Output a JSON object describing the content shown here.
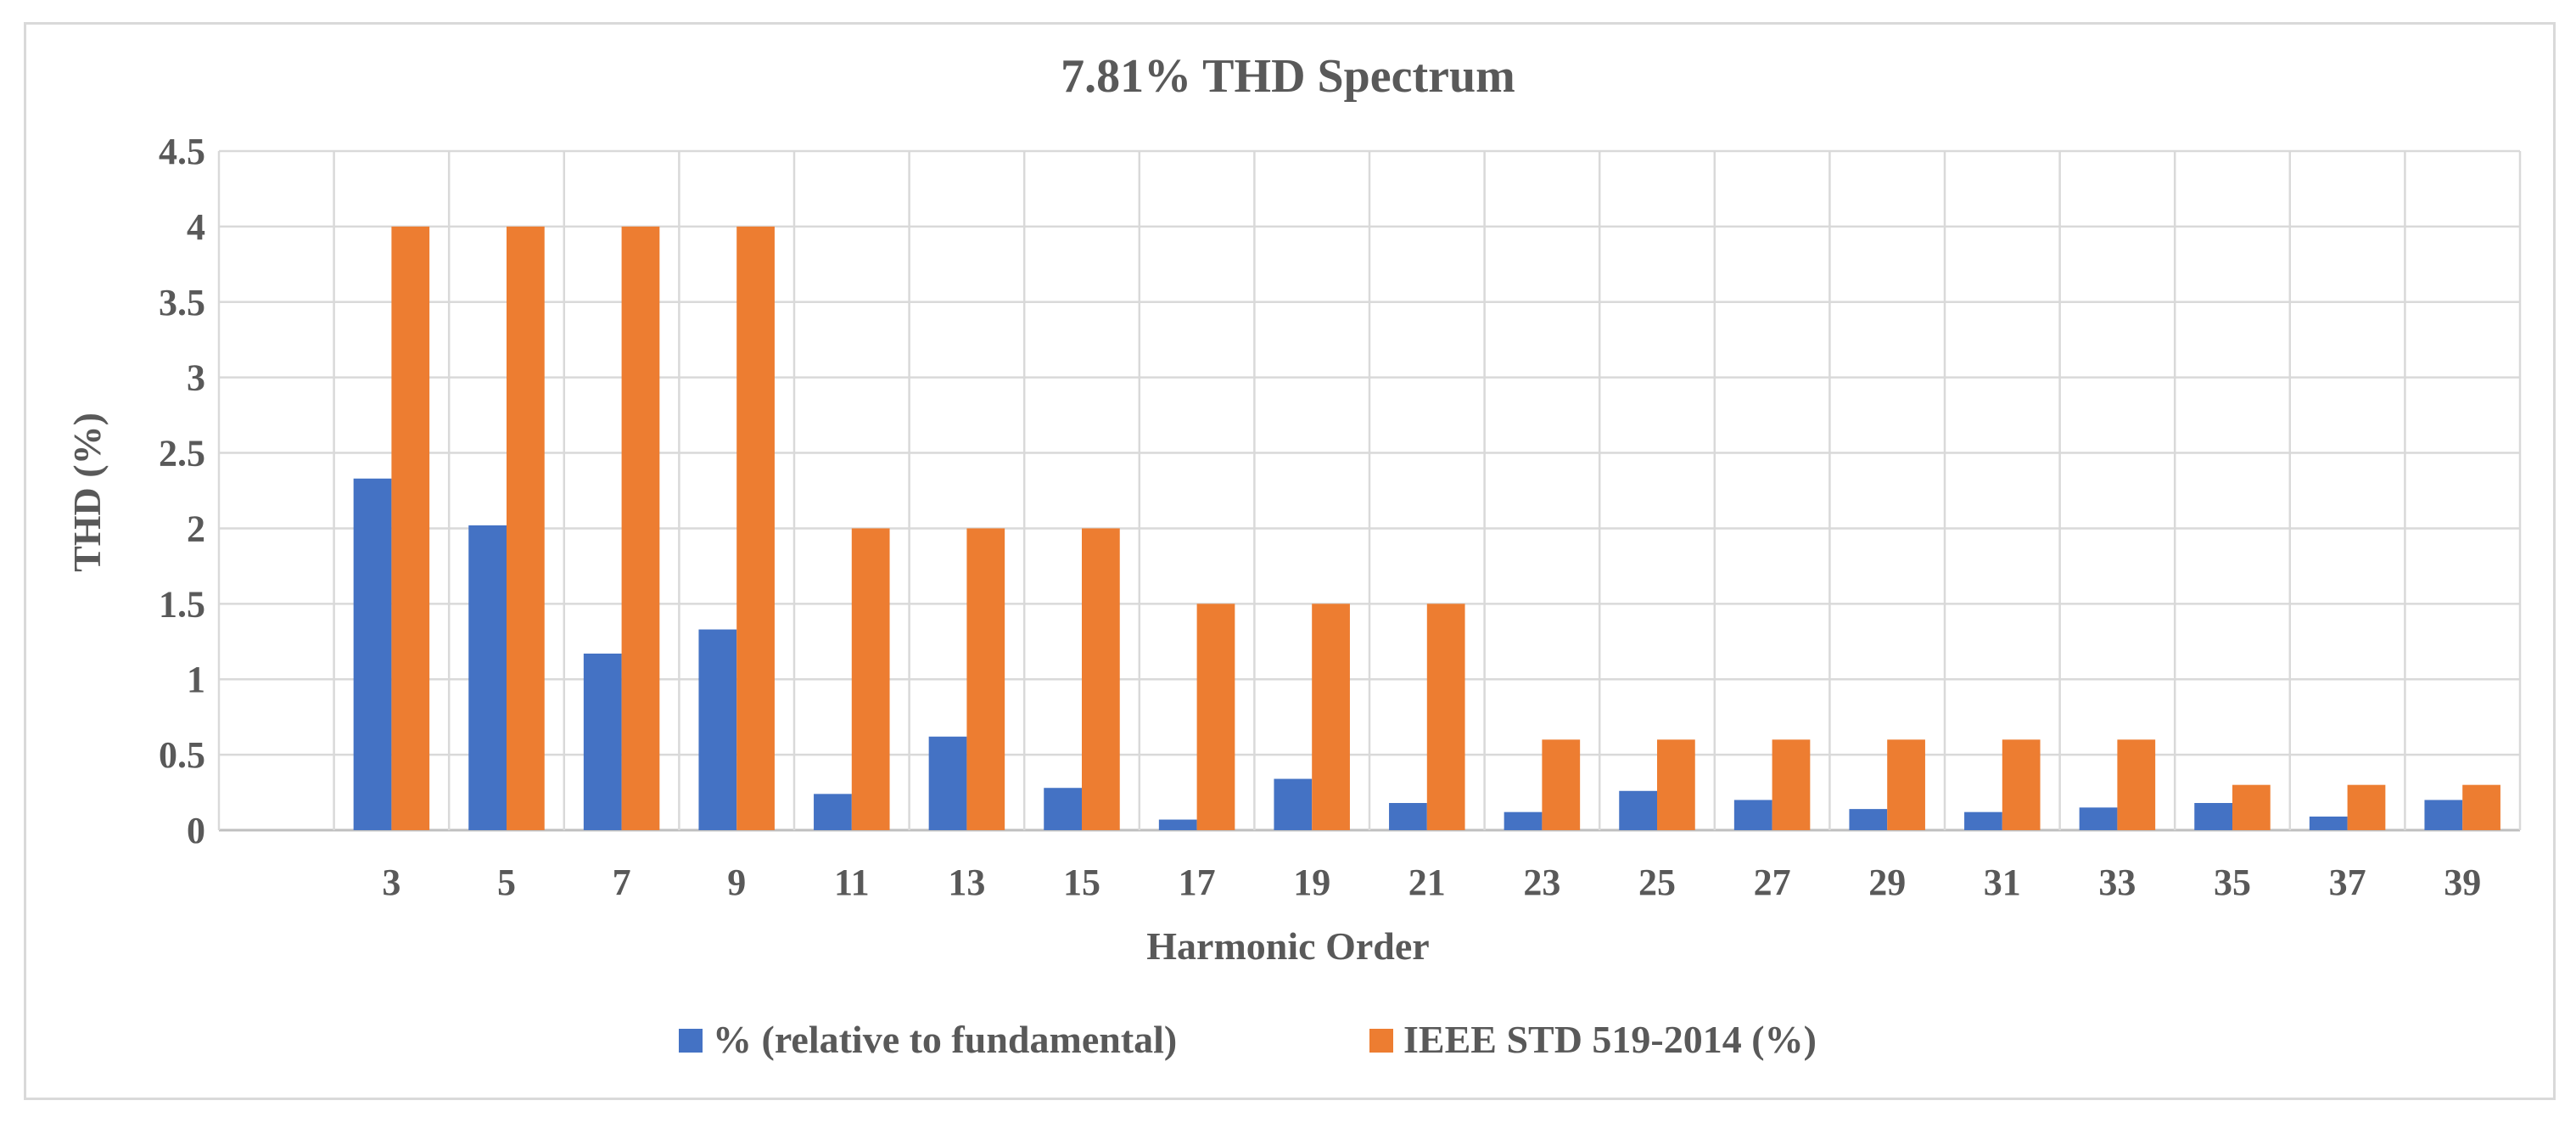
{
  "chart_data": {
    "type": "bar",
    "title": "7.81% THD Spectrum",
    "xlabel": "Harmonic Order",
    "ylabel": "THD (%)",
    "ylim": [
      0,
      4.5
    ],
    "yticks": [
      "0",
      "0.5",
      "1",
      "1.5",
      "2",
      "2.5",
      "3",
      "3.5",
      "4",
      "4.5"
    ],
    "categories": [
      "3",
      "5",
      "7",
      "9",
      "11",
      "13",
      "15",
      "17",
      "19",
      "21",
      "23",
      "25",
      "27",
      "29",
      "31",
      "33",
      "35",
      "37",
      "39"
    ],
    "series": [
      {
        "name": "% (relative to fundamental)",
        "color": "#4472C4",
        "values": [
          2.33,
          2.02,
          1.17,
          1.33,
          0.24,
          0.62,
          0.28,
          0.07,
          0.34,
          0.18,
          0.12,
          0.26,
          0.2,
          0.14,
          0.12,
          0.15,
          0.18,
          0.09,
          0.2
        ]
      },
      {
        "name": "IEEE STD 519-2014 (%)",
        "color": "#ED7D31",
        "values": [
          4,
          4,
          4,
          4,
          2,
          2,
          2,
          1.5,
          1.5,
          1.5,
          0.6,
          0.6,
          0.6,
          0.6,
          0.6,
          0.6,
          0.3,
          0.3,
          0.3
        ]
      }
    ],
    "grid": true,
    "legend": "bottom"
  }
}
